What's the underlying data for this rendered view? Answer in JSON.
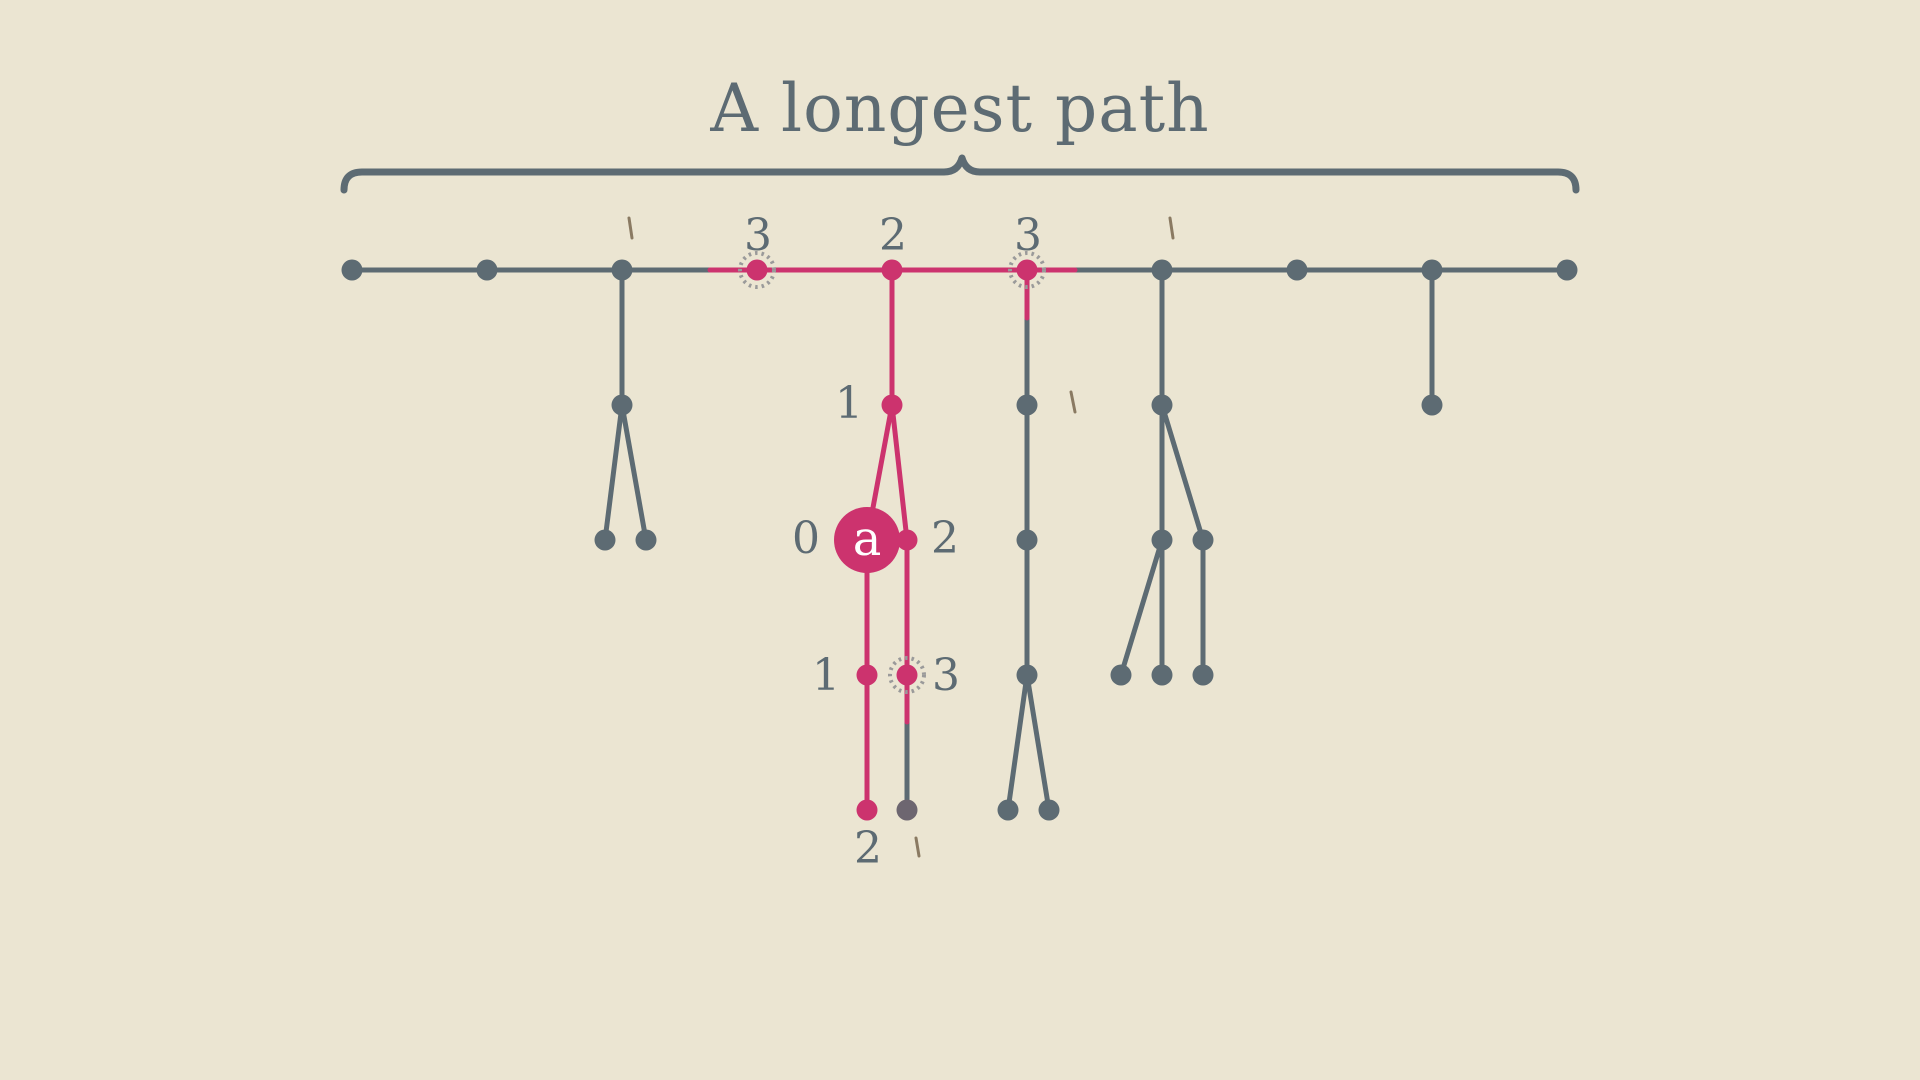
{
  "title": "A longest path",
  "colors": {
    "background": "#ebe5d2",
    "tree": "#5d6b73",
    "highlight": "#cc336e",
    "tick": "#8a7a62"
  },
  "root_label": "a",
  "nodes": [
    {
      "id": "s1",
      "state": "plain"
    },
    {
      "id": "s2",
      "state": "plain"
    },
    {
      "id": "s3",
      "state": "plain"
    },
    {
      "id": "s4",
      "state": "highlight",
      "label": "3",
      "sparkle": true
    },
    {
      "id": "s5",
      "state": "highlight",
      "label": "2"
    },
    {
      "id": "s6",
      "state": "highlight",
      "label": "3",
      "sparkle": true
    },
    {
      "id": "s7",
      "state": "plain"
    },
    {
      "id": "s8",
      "state": "plain"
    },
    {
      "id": "s9",
      "state": "plain"
    },
    {
      "id": "s10",
      "state": "plain"
    },
    {
      "id": "b1",
      "state": "plain"
    },
    {
      "id": "b1l",
      "state": "plain"
    },
    {
      "id": "b1r",
      "state": "plain"
    },
    {
      "id": "c1",
      "state": "highlight",
      "label": "1"
    },
    {
      "id": "a",
      "state": "root",
      "label": "0"
    },
    {
      "id": "c2",
      "state": "highlight",
      "label": "2"
    },
    {
      "id": "a1",
      "state": "highlight",
      "label": "1"
    },
    {
      "id": "a2",
      "state": "highlight",
      "label": "2"
    },
    {
      "id": "c3",
      "state": "highlight",
      "label": "3",
      "sparkle": true
    },
    {
      "id": "c4",
      "state": "dim"
    },
    {
      "id": "d1",
      "state": "plain"
    },
    {
      "id": "d2",
      "state": "plain"
    },
    {
      "id": "d3",
      "state": "plain"
    },
    {
      "id": "d4",
      "state": "plain"
    },
    {
      "id": "d5",
      "state": "plain"
    },
    {
      "id": "e1",
      "state": "plain"
    },
    {
      "id": "e2",
      "state": "plain"
    },
    {
      "id": "e3",
      "state": "plain"
    },
    {
      "id": "e4",
      "state": "plain"
    },
    {
      "id": "e5",
      "state": "plain"
    },
    {
      "id": "e6",
      "state": "plain"
    },
    {
      "id": "f1",
      "state": "plain"
    }
  ],
  "edges": [
    {
      "from": "s1",
      "to": "s2"
    },
    {
      "from": "s2",
      "to": "s3"
    },
    {
      "from": "s3",
      "to": "s4"
    },
    {
      "from": "s4",
      "to": "s5",
      "state": "highlight"
    },
    {
      "from": "s5",
      "to": "s6",
      "state": "highlight"
    },
    {
      "from": "s6",
      "to": "s7"
    },
    {
      "from": "s7",
      "to": "s8"
    },
    {
      "from": "s8",
      "to": "s9"
    },
    {
      "from": "s9",
      "to": "s10"
    },
    {
      "from": "s3",
      "to": "b1"
    },
    {
      "from": "b1",
      "to": "b1l"
    },
    {
      "from": "b1",
      "to": "b1r"
    },
    {
      "from": "s5",
      "to": "c1",
      "state": "highlight"
    },
    {
      "from": "c1",
      "to": "a",
      "state": "highlight"
    },
    {
      "from": "c1",
      "to": "c2",
      "state": "highlight"
    },
    {
      "from": "a",
      "to": "a1",
      "state": "highlight"
    },
    {
      "from": "a1",
      "to": "a2",
      "state": "highlight"
    },
    {
      "from": "c2",
      "to": "c3",
      "state": "highlight"
    },
    {
      "from": "c3",
      "to": "c4"
    },
    {
      "from": "s6",
      "to": "d1"
    },
    {
      "from": "d1",
      "to": "d2"
    },
    {
      "from": "d2",
      "to": "d3"
    },
    {
      "from": "d3",
      "to": "d4"
    },
    {
      "from": "d3",
      "to": "d5"
    },
    {
      "from": "s7",
      "to": "e1"
    },
    {
      "from": "e1",
      "to": "e2"
    },
    {
      "from": "e1",
      "to": "e3"
    },
    {
      "from": "e2",
      "to": "e4"
    },
    {
      "from": "e2",
      "to": "e5"
    },
    {
      "from": "e3",
      "to": "e6"
    },
    {
      "from": "s9",
      "to": "f1"
    }
  ]
}
